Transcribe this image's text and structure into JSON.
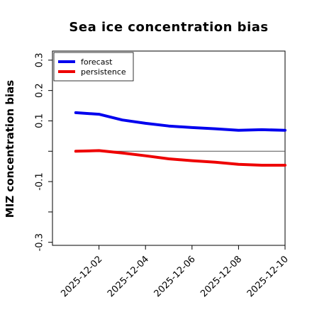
{
  "chart_data": {
    "type": "line",
    "title": "Sea ice concentration bias",
    "xlabel": "",
    "ylabel": "MIZ concentration bias",
    "x": [
      "2025-12-01",
      "2025-12-02",
      "2025-12-03",
      "2025-12-04",
      "2025-12-05",
      "2025-12-06",
      "2025-12-07",
      "2025-12-08",
      "2025-12-09",
      "2025-12-10"
    ],
    "x_tick_labels": [
      {
        "label": "2025-12-02",
        "color": "#228b22"
      },
      {
        "label": "2025-12-04",
        "color": "#000000"
      },
      {
        "label": "2025-12-06",
        "color": "#000000"
      },
      {
        "label": "2025-12-08",
        "color": "#000000"
      },
      {
        "label": "2025-12-10",
        "color": "#000000"
      }
    ],
    "xlim": [
      "2025-11-30",
      "2025-12-10"
    ],
    "ylim": [
      -0.31,
      0.33
    ],
    "y_ticks": [
      -0.3,
      -0.2,
      -0.1,
      0.0,
      0.1,
      0.2,
      0.3
    ],
    "y_tick_labels": [
      "-0.3",
      "",
      "-0.1",
      "",
      "0.1",
      "0.2",
      "0.3"
    ],
    "zero_line": true,
    "grid": false,
    "legend_position": "upper left",
    "series": [
      {
        "name": "forecast",
        "color": "#0000ee",
        "values": [
          0.127,
          0.122,
          0.103,
          0.092,
          0.083,
          0.078,
          0.074,
          0.069,
          0.071,
          0.069
        ]
      },
      {
        "name": "persistence",
        "color": "#ee0000",
        "values": [
          0.0,
          0.002,
          -0.006,
          -0.015,
          -0.025,
          -0.031,
          -0.036,
          -0.043,
          -0.046,
          -0.046
        ]
      }
    ]
  }
}
